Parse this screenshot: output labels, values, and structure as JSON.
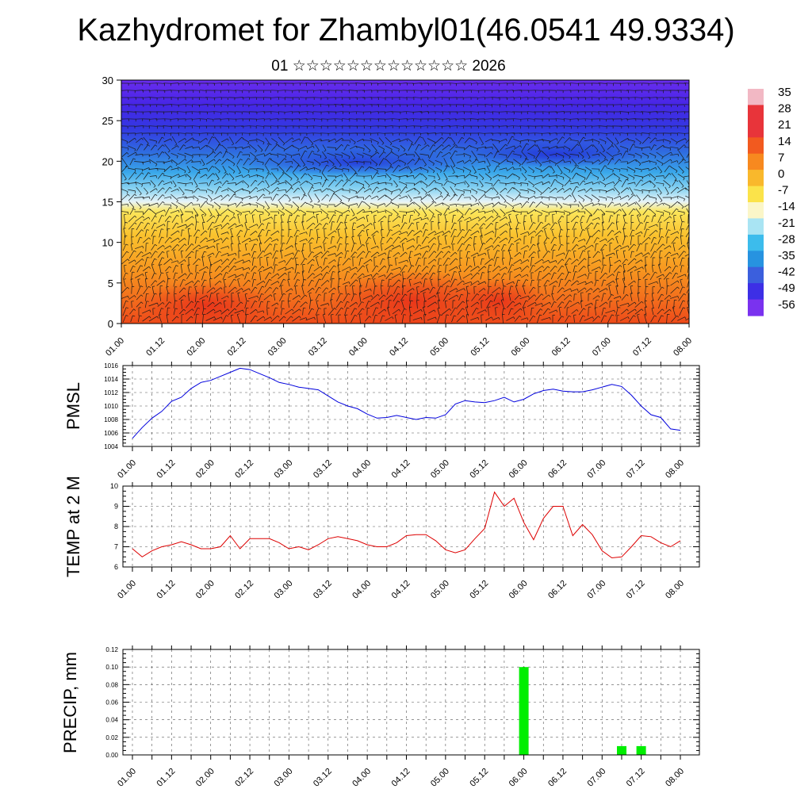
{
  "header": {
    "title": "Kazhydromet for Zhambyl01(46.0541 49.9334)",
    "subtitle": "01 ☆☆☆☆☆☆☆☆☆☆☆☆☆ 2026"
  },
  "colors": {
    "pmsl_line": "#0000dd",
    "temp_line": "#dd0000",
    "precip_bar": "#00ee00",
    "axis": "#000000",
    "grid": "#555555"
  },
  "chart_data": [
    {
      "type": "heatmap",
      "name": "cross-section",
      "ylim": [
        0,
        30
      ],
      "yticks": [
        0,
        5,
        10,
        15,
        20,
        25,
        30
      ],
      "xticks": [
        "01.00",
        "01.12",
        "02.00",
        "02.12",
        "03.00",
        "03.12",
        "04.00",
        "04.12",
        "05.00",
        "05.12",
        "06.00",
        "06.12",
        "07.00",
        "07.12",
        "08.00"
      ],
      "colorbar_labels": [
        "35",
        "28",
        "21",
        "14",
        "7",
        "0",
        "-7",
        "-14",
        "-21",
        "-28",
        "-35",
        "-42",
        "-49",
        "-56"
      ],
      "colorbar_colors": [
        "#f2b8c4",
        "#e8343a",
        "#e8343a",
        "#f25a1f",
        "#f7891f",
        "#f9b82c",
        "#fbe34a",
        "#fbf6c8",
        "#a9e4f3",
        "#3cbcec",
        "#2793e0",
        "#3b5fdd",
        "#3d2fe6",
        "#7a32ef"
      ]
    },
    {
      "type": "line",
      "name": "pmsl",
      "ylabel": "PMSL",
      "ylim": [
        1004,
        1016
      ],
      "yticks": [
        "1004",
        "1006",
        "1008",
        "1010",
        "1012",
        "1014",
        "1016"
      ],
      "xticks": [
        "01.00",
        "01.12",
        "02.00",
        "02.12",
        "03.00",
        "03.12",
        "04.00",
        "04.12",
        "05.00",
        "05.12",
        "06.00",
        "06.12",
        "07.00",
        "07.12",
        "08.00"
      ],
      "x": [
        0,
        0.125,
        0.25,
        0.375,
        0.5,
        0.625,
        0.75,
        0.875,
        1,
        1.125,
        1.25,
        1.375,
        1.5,
        1.625,
        1.75,
        1.875,
        2,
        2.125,
        2.25,
        2.375,
        2.5,
        2.625,
        2.75,
        2.875,
        3,
        3.125,
        3.25,
        3.375,
        3.5,
        3.625,
        3.75,
        3.875,
        4,
        4.125,
        4.25,
        4.375,
        4.5,
        4.625,
        4.75,
        4.875,
        5,
        5.125,
        5.25,
        5.375,
        5.5,
        5.625,
        5.75,
        5.875,
        6,
        6.125,
        6.25,
        6.375,
        6.5,
        6.625,
        6.75,
        6.875,
        7
      ],
      "values": [
        1005.2,
        1006.8,
        1008.2,
        1009.2,
        1010.7,
        1011.3,
        1012.6,
        1013.5,
        1013.8,
        1014.4,
        1015.0,
        1015.6,
        1015.4,
        1014.8,
        1014.2,
        1013.5,
        1013.2,
        1012.8,
        1012.6,
        1012.4,
        1011.5,
        1010.6,
        1010.0,
        1009.6,
        1008.8,
        1008.2,
        1008.3,
        1008.6,
        1008.3,
        1008.0,
        1008.3,
        1008.2,
        1008.7,
        1010.3,
        1010.8,
        1010.6,
        1010.5,
        1010.8,
        1011.3,
        1010.6,
        1011.0,
        1011.8,
        1012.3,
        1012.5,
        1012.2,
        1012.1,
        1012.1,
        1012.4,
        1012.8,
        1013.2,
        1012.9,
        1011.6,
        1010.0,
        1008.7,
        1008.3,
        1006.6,
        1006.4
      ]
    },
    {
      "type": "line",
      "name": "temp",
      "ylabel": "TEMP at 2 M",
      "ylim": [
        6,
        10
      ],
      "yticks": [
        "6",
        "7",
        "8",
        "9",
        "10"
      ],
      "xticks": [
        "01.00",
        "01.12",
        "02.00",
        "02.12",
        "03.00",
        "03.12",
        "04.00",
        "04.12",
        "05.00",
        "05.12",
        "06.00",
        "06.12",
        "07.00",
        "07.12",
        "08.00"
      ],
      "x": [
        0,
        0.125,
        0.25,
        0.375,
        0.5,
        0.625,
        0.75,
        0.875,
        1,
        1.125,
        1.25,
        1.375,
        1.5,
        1.625,
        1.75,
        1.875,
        2,
        2.125,
        2.25,
        2.375,
        2.5,
        2.625,
        2.75,
        2.875,
        3,
        3.125,
        3.25,
        3.375,
        3.5,
        3.625,
        3.75,
        3.875,
        4,
        4.125,
        4.25,
        4.375,
        4.5,
        4.625,
        4.75,
        4.875,
        5,
        5.125,
        5.25,
        5.375,
        5.5,
        5.625,
        5.75,
        5.875,
        6,
        6.125,
        6.25,
        6.375,
        6.5,
        6.625,
        6.75,
        6.875,
        7
      ],
      "values": [
        6.9,
        6.5,
        6.8,
        7.0,
        7.1,
        7.25,
        7.1,
        6.9,
        6.9,
        7.0,
        7.55,
        6.9,
        7.4,
        7.4,
        7.4,
        7.2,
        6.9,
        7.0,
        6.85,
        7.1,
        7.4,
        7.5,
        7.4,
        7.3,
        7.1,
        7.0,
        7.0,
        7.2,
        7.55,
        7.6,
        7.6,
        7.3,
        6.85,
        6.7,
        6.85,
        7.4,
        7.9,
        9.7,
        9.0,
        9.4,
        8.2,
        7.35,
        8.4,
        9.0,
        9.0,
        7.55,
        8.1,
        7.6,
        6.8,
        6.45,
        6.5,
        7.0,
        7.55,
        7.5,
        7.2,
        7.0,
        7.3
      ]
    },
    {
      "type": "bar",
      "name": "precip",
      "ylabel": "PRECIP, mm",
      "ylim": [
        0,
        0.12
      ],
      "yticks": [
        "0.00",
        "0.02",
        "0.04",
        "0.06",
        "0.08",
        "0.10",
        "0.12"
      ],
      "xticks": [
        "01.00",
        "01.12",
        "02.00",
        "02.12",
        "03.00",
        "03.12",
        "04.00",
        "04.12",
        "05.00",
        "05.12",
        "06.00",
        "06.12",
        "07.00",
        "07.12",
        "08.00"
      ],
      "bars": [
        {
          "x": 5.0,
          "value": 0.1
        },
        {
          "x": 6.25,
          "value": 0.01
        },
        {
          "x": 6.5,
          "value": 0.01
        }
      ]
    }
  ]
}
